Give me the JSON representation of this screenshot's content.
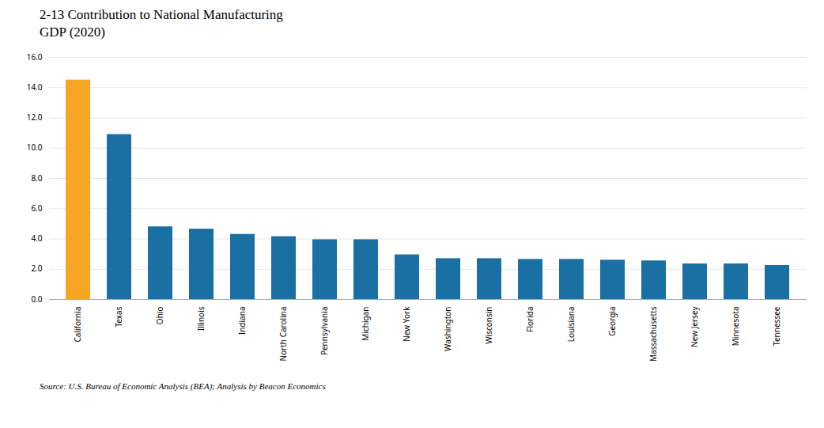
{
  "chart_data": {
    "type": "bar",
    "title": "2-13 Contribution to National Manufacturing\nGDP (2020)",
    "caption": "Source: U.S. Bureau of Economic Analysis (BEA); Analysis by Beacon Economics",
    "categories": [
      "California",
      "Texas",
      "Ohio",
      "Illinois",
      "Indiana",
      "North Carolina",
      "Pennsylvania",
      "Michigan",
      "New York",
      "Washington",
      "Wisconsin",
      "Florida",
      "Louisiana",
      "Georgia",
      "Massachusetts",
      "New Jersey",
      "Minnesota",
      "Tennessee"
    ],
    "values": [
      14.5,
      10.9,
      4.8,
      4.65,
      4.3,
      4.15,
      3.95,
      3.95,
      2.95,
      2.7,
      2.7,
      2.65,
      2.65,
      2.6,
      2.55,
      2.35,
      2.35,
      2.25
    ],
    "colors": [
      "#f5a623",
      "#1a6fa3",
      "#1a6fa3",
      "#1a6fa3",
      "#1a6fa3",
      "#1a6fa3",
      "#1a6fa3",
      "#1a6fa3",
      "#1a6fa3",
      "#1a6fa3",
      "#1a6fa3",
      "#1a6fa3",
      "#1a6fa3",
      "#1a6fa3",
      "#1a6fa3",
      "#1a6fa3",
      "#1a6fa3",
      "#1a6fa3"
    ],
    "ylim": [
      0,
      16.0
    ],
    "yticks": [
      {
        "value": 0,
        "label": "0.0"
      },
      {
        "value": 2,
        "label": "2.0"
      },
      {
        "value": 4,
        "label": "4.0"
      },
      {
        "value": 6,
        "label": "6.0"
      },
      {
        "value": 8,
        "label": "8.0"
      },
      {
        "value": 10,
        "label": "10.0"
      },
      {
        "value": 12,
        "label": "12.0"
      },
      {
        "value": 14,
        "label": "14.0"
      },
      {
        "value": 16,
        "label": "16.0"
      }
    ],
    "grid": true
  }
}
